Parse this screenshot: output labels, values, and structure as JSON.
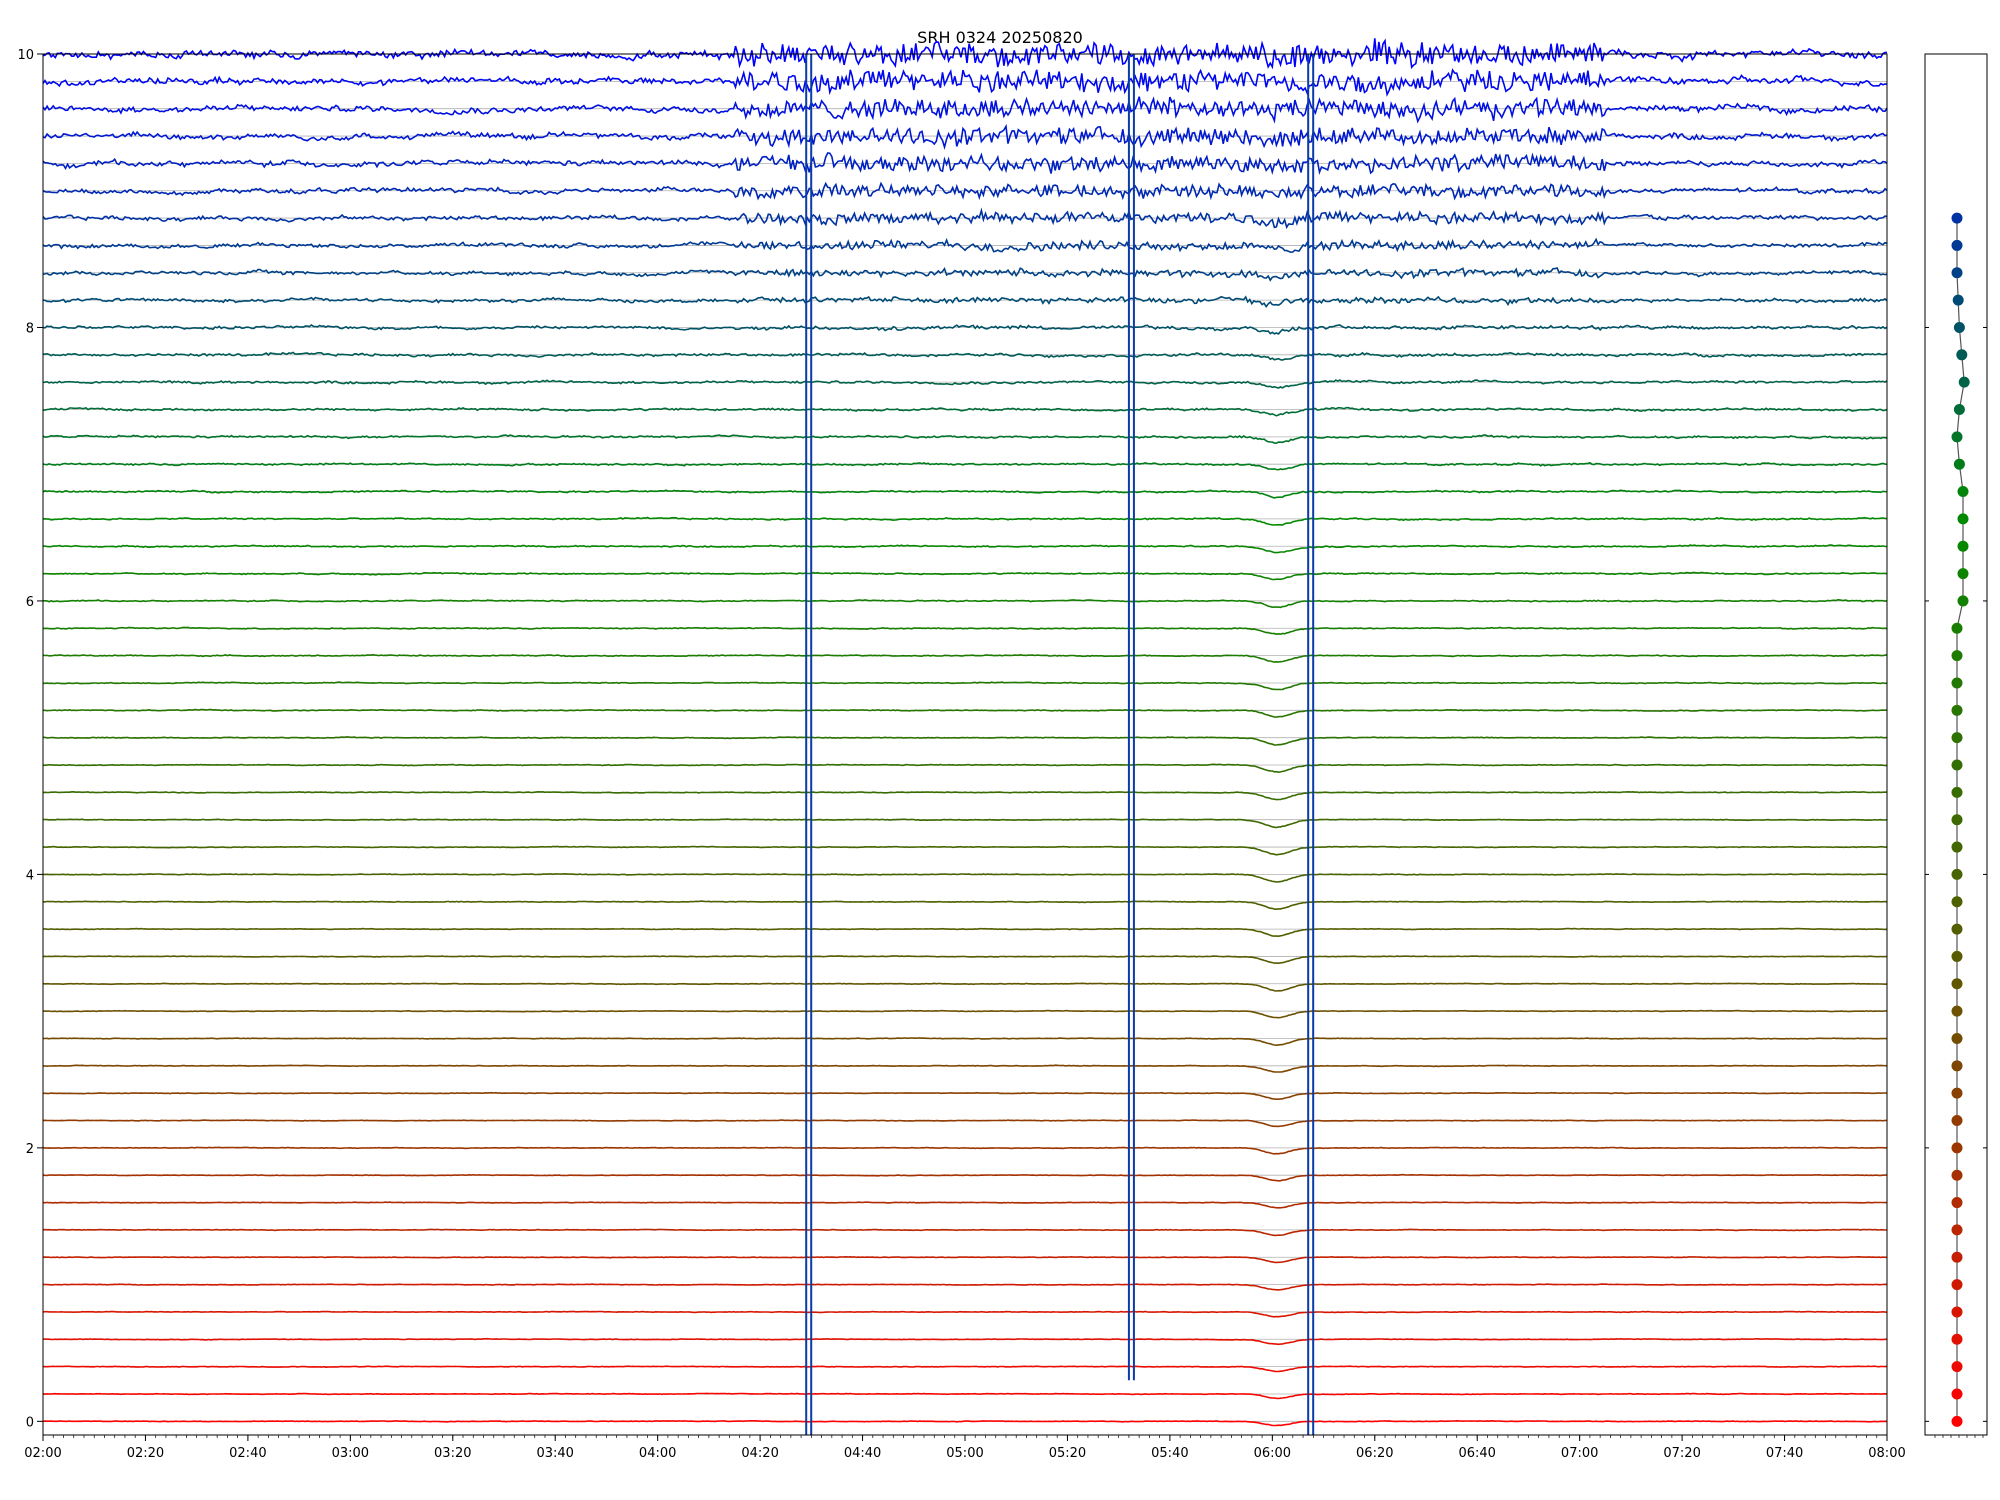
{
  "chart_data": [
    {
      "type": "line",
      "title": "SRH 0324 20250820",
      "xlabel": "",
      "ylabel": "",
      "x_range_minutes": [
        120,
        480
      ],
      "x_ticks": [
        "02:00",
        "02:20",
        "02:40",
        "03:00",
        "03:20",
        "03:40",
        "04:00",
        "04:20",
        "04:40",
        "05:00",
        "05:20",
        "05:40",
        "06:00",
        "06:20",
        "06:40",
        "07:00",
        "07:20",
        "07:40",
        "08:00"
      ],
      "ylim": [
        -0.1,
        10
      ],
      "y_ticks": [
        "0",
        "2",
        "4",
        "6",
        "8",
        "10"
      ],
      "grid": "horizontal reference lines at each trace baseline",
      "legend": "none",
      "n_traces": 51,
      "trace_spacing": 0.2,
      "trace_color_gradient": [
        "#ff0000",
        "#5a5a00",
        "#008a00",
        "#0000ff"
      ],
      "common_dip_time": "06:01",
      "large_spikes": [
        {
          "time": "04:29",
          "min": -0.1,
          "max": 10
        },
        {
          "time": "05:32",
          "min": 0.3,
          "max": 10
        },
        {
          "time": "06:07",
          "min": -0.1,
          "max": 10
        }
      ],
      "series_note": "each trace is a near-flat line at its baseline value; upper traces noisier with excursions between 04:15 and 07:05"
    },
    {
      "type": "scatter",
      "title": "",
      "ylim": [
        -0.1,
        10
      ],
      "points_y": [
        0,
        0.2,
        0.4,
        0.6,
        0.8,
        1.0,
        1.2,
        1.4,
        1.6,
        1.8,
        2.0,
        2.2,
        2.4,
        2.6,
        2.8,
        3.0,
        3.2,
        3.4,
        3.6,
        3.8,
        4.0,
        4.2,
        4.4,
        4.6,
        4.8,
        5.0,
        5.2,
        5.4,
        5.6,
        5.8,
        6.0,
        6.2,
        6.4,
        6.6,
        6.8,
        7.0,
        7.2,
        7.4,
        7.6,
        7.8,
        8.0,
        8.2,
        8.4,
        8.6,
        8.8
      ],
      "points_x_offset": [
        0,
        0,
        0,
        0,
        0,
        0,
        0,
        0,
        0,
        0,
        0,
        0,
        0,
        0,
        0,
        0,
        0,
        0,
        0,
        0,
        0,
        0,
        0,
        0,
        0,
        0,
        0,
        0,
        0,
        0,
        0.5,
        0.5,
        0.5,
        0.5,
        0.5,
        0.2,
        0,
        0.2,
        0.6,
        0.4,
        0.2,
        0.1,
        0,
        0,
        0
      ]
    }
  ]
}
